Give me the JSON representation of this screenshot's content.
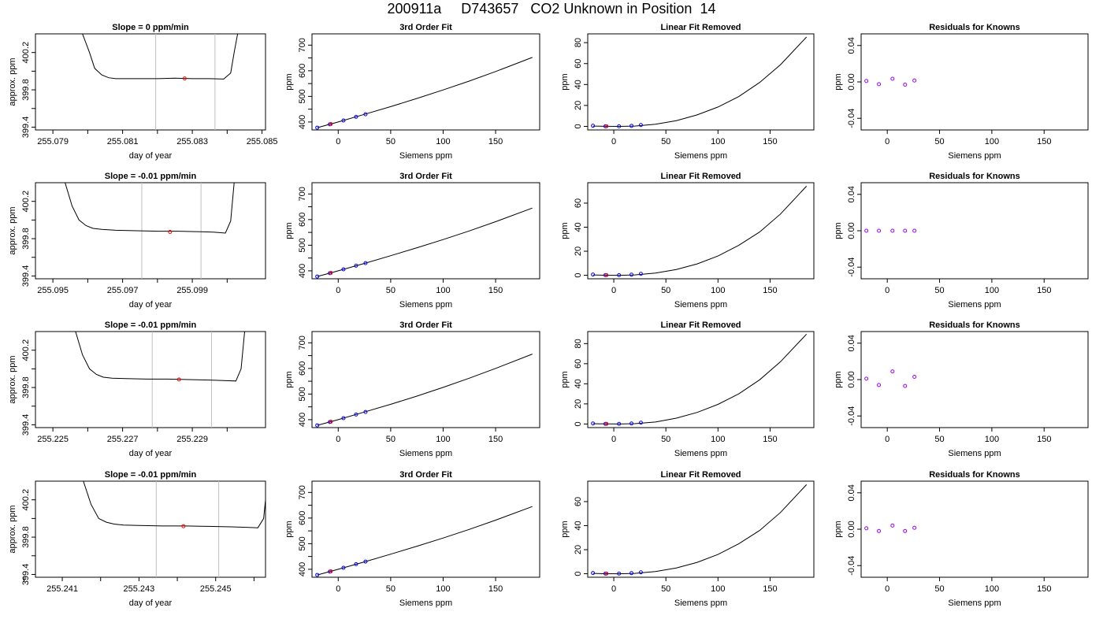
{
  "page": {
    "title": "200911a     D743657   CO2 Unknown in Position  14"
  },
  "chart_data": [
    {
      "panel": "time-series",
      "type": "line",
      "title": "Slope =  0  ppm/min",
      "xlabel": "day of year",
      "ylabel": "approx. ppm",
      "xlim": [
        255.0785,
        255.0851
      ],
      "ylim": [
        399.37,
        400.4
      ],
      "xticks": [
        "255.079",
        "255.081",
        "255.083",
        "255.085"
      ],
      "xtick_values": [
        255.079,
        255.081,
        255.083,
        255.085
      ],
      "xticks_minor": [
        255.08,
        255.082,
        255.084
      ],
      "yticks": [
        "399.4",
        "399.8",
        "400.2"
      ],
      "ytick_values": [
        399.4,
        399.8,
        400.2
      ],
      "yticks_minor": [
        399.6,
        400.0
      ],
      "vlines": [
        255.08195,
        255.08365
      ],
      "trace": {
        "x": [
          255.07985,
          255.08005,
          255.0802,
          255.0804,
          255.0806,
          255.0808,
          255.081,
          255.0814,
          255.082,
          255.0825,
          255.083,
          255.0835,
          255.0839,
          255.0841,
          255.0842,
          255.0843
        ],
        "y": [
          400.4,
          400.2,
          400.03,
          399.96,
          399.93,
          399.92,
          399.92,
          399.92,
          399.92,
          399.925,
          399.92,
          399.92,
          399.915,
          399.98,
          400.2,
          400.4
        ]
      },
      "point": {
        "x": 255.08278,
        "y": 399.922
      }
    },
    {
      "panel": "fit",
      "type": "line",
      "title": "3rd Order Fit",
      "xlabel": "Siemens ppm",
      "ylabel": "ppm",
      "xlim": [
        -25,
        192
      ],
      "ylim": [
        369,
        744
      ],
      "xticks": [
        "0",
        "50",
        "100",
        "150"
      ],
      "xtick_values": [
        0,
        50,
        100,
        150
      ],
      "yticks": [
        "400",
        "500",
        "600",
        "700"
      ],
      "ytick_values": [
        400,
        500,
        600,
        700
      ],
      "yticks_minor": [
        450,
        550,
        650
      ],
      "curve": {
        "x": [
          -20,
          0,
          25,
          50,
          75,
          100,
          125,
          150,
          185
        ],
        "y": [
          378,
          400,
          430,
          460,
          492,
          525,
          560,
          597,
          652
        ]
      },
      "knowns": {
        "x": [
          -20,
          -8,
          5,
          17,
          26
        ],
        "y": [
          378,
          391,
          406,
          420,
          430
        ]
      },
      "unknown": {
        "x": -7,
        "y": 392
      }
    },
    {
      "panel": "linear-removed",
      "type": "line",
      "title": "Linear Fit Removed",
      "xlabel": "Siemens ppm",
      "ylabel": "ppm",
      "xlim": [
        -25,
        192
      ],
      "ylim": [
        -3.4,
        88.4
      ],
      "xticks": [
        "0",
        "50",
        "100",
        "150"
      ],
      "xtick_values": [
        0,
        50,
        100,
        150
      ],
      "yticks": [
        "0",
        "20",
        "40",
        "60",
        "80"
      ],
      "ytick_values": [
        0,
        20,
        40,
        60,
        80
      ],
      "curve": {
        "x": [
          -20,
          -8,
          5,
          20,
          40,
          60,
          80,
          100,
          120,
          140,
          160,
          185
        ],
        "y": [
          0.3,
          0.05,
          0,
          0.3,
          2,
          5.5,
          11,
          18.5,
          28.5,
          42,
          59,
          85.4
        ]
      },
      "knowns": {
        "x": [
          -20,
          -8,
          5,
          17,
          26
        ],
        "y": [
          0.6,
          0.1,
          0.1,
          0.5,
          1.3
        ]
      },
      "unknown": {
        "x": -7,
        "y": 0.1
      }
    },
    {
      "panel": "residuals",
      "type": "scatter",
      "title": "Residuals for Knowns",
      "xlabel": "Siemens ppm",
      "ylabel": "ppm",
      "xlim": [
        -25,
        192
      ],
      "ylim": [
        -0.0528,
        0.0528
      ],
      "xticks": [
        "0",
        "50",
        "100",
        "150"
      ],
      "xtick_values": [
        0,
        50,
        100,
        150
      ],
      "yticks": [
        "-0.04",
        "0.00",
        "0.04"
      ],
      "ytick_values": [
        -0.04,
        0,
        0.04
      ],
      "points": {
        "x": [
          -20,
          -8,
          5,
          17,
          26
        ],
        "y": [
          0.001,
          -0.0025,
          0.0035,
          -0.003,
          0.0015
        ]
      }
    },
    {
      "panel": "time-series",
      "type": "line",
      "title": "Slope =  -0.01  ppm/min",
      "xlabel": "day of year",
      "ylabel": "approx. ppm",
      "xlim": [
        255.0945,
        255.1011
      ],
      "ylim": [
        399.37,
        400.4
      ],
      "xticks": [
        "255.095",
        "255.097",
        "255.099"
      ],
      "xtick_values": [
        255.095,
        255.097,
        255.099
      ],
      "xticks_minor": [
        255.096,
        255.098,
        255.1
      ],
      "yticks": [
        "399.4",
        "399.8",
        "400.2"
      ],
      "ytick_values": [
        399.4,
        399.8,
        400.2
      ],
      "yticks_minor": [
        399.6,
        400.0
      ],
      "vlines": [
        255.09755,
        255.09925
      ],
      "trace": {
        "x": [
          255.09535,
          255.09555,
          255.09575,
          255.09595,
          255.09615,
          255.0964,
          255.0968,
          255.0974,
          255.098,
          255.0986,
          255.0992,
          255.0996,
          255.09995,
          255.1001,
          255.1002
        ],
        "y": [
          400.4,
          400.15,
          400.0,
          399.94,
          399.91,
          399.9,
          399.89,
          399.885,
          399.88,
          399.88,
          399.875,
          399.87,
          399.86,
          399.99,
          400.4
        ]
      },
      "point": {
        "x": 255.09836,
        "y": 399.872
      }
    },
    {
      "panel": "fit",
      "type": "line",
      "title": "3rd Order Fit",
      "xlabel": "Siemens ppm",
      "ylabel": "ppm",
      "xlim": [
        -25,
        192
      ],
      "ylim": [
        369,
        744
      ],
      "xticks": [
        "0",
        "50",
        "100",
        "150"
      ],
      "xtick_values": [
        0,
        50,
        100,
        150
      ],
      "yticks": [
        "400",
        "500",
        "600",
        "700"
      ],
      "ytick_values": [
        400,
        500,
        600,
        700
      ],
      "yticks_minor": [
        450,
        550,
        650
      ],
      "curve": {
        "x": [
          -20,
          0,
          25,
          50,
          75,
          100,
          125,
          150,
          185
        ],
        "y": [
          378,
          400,
          429,
          459,
          490,
          522,
          556,
          592,
          645
        ]
      },
      "knowns": {
        "x": [
          -20,
          -8,
          5,
          17,
          26
        ],
        "y": [
          378,
          391,
          406,
          420,
          430
        ]
      },
      "unknown": {
        "x": -7,
        "y": 392
      }
    },
    {
      "panel": "linear-removed",
      "type": "line",
      "title": "Linear Fit Removed",
      "xlabel": "Siemens ppm",
      "ylabel": "ppm",
      "xlim": [
        -25,
        192
      ],
      "ylim": [
        -2.9,
        77.0
      ],
      "xticks": [
        "0",
        "50",
        "100",
        "150"
      ],
      "xtick_values": [
        0,
        50,
        100,
        150
      ],
      "yticks": [
        "0",
        "20",
        "40",
        "60"
      ],
      "ytick_values": [
        0,
        20,
        40,
        60
      ],
      "curve": {
        "x": [
          -20,
          -8,
          5,
          20,
          40,
          60,
          80,
          100,
          120,
          140,
          160,
          185
        ],
        "y": [
          0.3,
          0.05,
          0,
          0.3,
          1.8,
          4.8,
          9.5,
          16,
          25,
          36,
          51,
          74.1
        ]
      },
      "knowns": {
        "x": [
          -20,
          -8,
          5,
          17,
          26
        ],
        "y": [
          0.6,
          0.1,
          0.1,
          0.5,
          1.2
        ]
      },
      "unknown": {
        "x": -7,
        "y": 0.1
      }
    },
    {
      "panel": "residuals",
      "type": "scatter",
      "title": "Residuals for Knowns",
      "xlabel": "Siemens ppm",
      "ylabel": "ppm",
      "xlim": [
        -25,
        192
      ],
      "ylim": [
        -0.0528,
        0.0528
      ],
      "xticks": [
        "0",
        "50",
        "100",
        "150"
      ],
      "xtick_values": [
        0,
        50,
        100,
        150
      ],
      "yticks": [
        "-0.04",
        "0.00",
        "0.04"
      ],
      "ytick_values": [
        -0.04,
        0,
        0.04
      ],
      "points": {
        "x": [
          -20,
          -8,
          5,
          17,
          26
        ],
        "y": [
          0,
          0,
          0,
          0,
          0
        ]
      }
    },
    {
      "panel": "time-series",
      "type": "line",
      "title": "Slope =  -0.01  ppm/min",
      "xlabel": "day of year",
      "ylabel": "approx. ppm",
      "xlim": [
        255.2245,
        255.2311
      ],
      "ylim": [
        399.37,
        400.4
      ],
      "xticks": [
        "255.225",
        "255.227",
        "255.229"
      ],
      "xtick_values": [
        255.225,
        255.227,
        255.229
      ],
      "xticks_minor": [
        255.226,
        255.228,
        255.23
      ],
      "yticks": [
        "399.4",
        "399.8",
        "400.2"
      ],
      "ytick_values": [
        399.4,
        399.8,
        400.2
      ],
      "yticks_minor": [
        399.6,
        400.0
      ],
      "vlines": [
        255.22785,
        255.22955
      ],
      "trace": {
        "x": [
          255.22565,
          255.22585,
          255.22605,
          255.22625,
          255.22645,
          255.2267,
          255.2271,
          255.2277,
          255.2283,
          255.2289,
          255.2295,
          255.2299,
          255.23025,
          255.2304,
          255.2305
        ],
        "y": [
          400.4,
          400.15,
          400.0,
          399.94,
          399.91,
          399.9,
          399.895,
          399.89,
          399.89,
          399.885,
          399.88,
          399.875,
          399.87,
          400.0,
          400.4
        ]
      },
      "point": {
        "x": 255.22862,
        "y": 399.886
      }
    },
    {
      "panel": "fit",
      "type": "line",
      "title": "3rd Order Fit",
      "xlabel": "Siemens ppm",
      "ylabel": "ppm",
      "xlim": [
        -25,
        192
      ],
      "ylim": [
        369,
        744
      ],
      "xticks": [
        "0",
        "50",
        "100",
        "150"
      ],
      "xtick_values": [
        0,
        50,
        100,
        150
      ],
      "yticks": [
        "400",
        "500",
        "600",
        "700"
      ],
      "ytick_values": [
        400,
        500,
        600,
        700
      ],
      "yticks_minor": [
        450,
        550,
        650
      ],
      "curve": {
        "x": [
          -20,
          0,
          25,
          50,
          75,
          100,
          125,
          150,
          185
        ],
        "y": [
          378,
          400,
          430,
          460,
          492,
          526,
          562,
          600,
          656
        ]
      },
      "knowns": {
        "x": [
          -20,
          -8,
          5,
          17,
          26
        ],
        "y": [
          378,
          391,
          406,
          420,
          430
        ]
      },
      "unknown": {
        "x": -7,
        "y": 392
      }
    },
    {
      "panel": "linear-removed",
      "type": "line",
      "title": "Linear Fit Removed",
      "xlabel": "Siemens ppm",
      "ylabel": "ppm",
      "xlim": [
        -25,
        192
      ],
      "ylim": [
        -3.6,
        92.0
      ],
      "xticks": [
        "0",
        "50",
        "100",
        "150"
      ],
      "xtick_values": [
        0,
        50,
        100,
        150
      ],
      "yticks": [
        "0",
        "20",
        "40",
        "60",
        "80"
      ],
      "ytick_values": [
        0,
        20,
        40,
        60,
        80
      ],
      "curve": {
        "x": [
          -20,
          -8,
          5,
          20,
          40,
          60,
          80,
          100,
          120,
          140,
          160,
          185
        ],
        "y": [
          0.3,
          0.05,
          0,
          0.3,
          2,
          5.8,
          11.5,
          19.5,
          30,
          44,
          62,
          89.4
        ]
      },
      "knowns": {
        "x": [
          -20,
          -8,
          5,
          17,
          26
        ],
        "y": [
          0.5,
          0.1,
          0.1,
          0.5,
          1.3
        ]
      },
      "unknown": {
        "x": -7,
        "y": 0.1
      }
    },
    {
      "panel": "residuals",
      "type": "scatter",
      "title": "Residuals for Knowns",
      "xlabel": "Siemens ppm",
      "ylabel": "ppm",
      "xlim": [
        -25,
        192
      ],
      "ylim": [
        -0.0528,
        0.0528
      ],
      "xticks": [
        "0",
        "50",
        "100",
        "150"
      ],
      "xtick_values": [
        0,
        50,
        100,
        150
      ],
      "yticks": [
        "-0.04",
        "0.00",
        "0.04"
      ],
      "ytick_values": [
        -0.04,
        0,
        0.04
      ],
      "points": {
        "x": [
          -20,
          -8,
          5,
          17,
          26
        ],
        "y": [
          0.001,
          -0.006,
          0.009,
          -0.007,
          0.003
        ]
      }
    },
    {
      "panel": "time-series",
      "type": "line",
      "title": "Slope =  -0.01  ppm/min",
      "xlabel": "day of year",
      "ylabel": "approx. ppm",
      "xlim": [
        255.2403,
        255.2463
      ],
      "ylim": [
        399.37,
        400.4
      ],
      "xticks": [
        "255.241",
        "255.243",
        "255.245"
      ],
      "xtick_values": [
        255.241,
        255.243,
        255.245
      ],
      "xticks_minor": [
        255.24,
        255.242,
        255.244,
        255.246
      ],
      "yticks": [
        "399.4",
        "399.8",
        "400.2"
      ],
      "ytick_values": [
        399.4,
        399.8,
        400.2
      ],
      "yticks_minor": [
        399.6,
        400.0
      ],
      "vlines": [
        255.24345,
        255.24508
      ],
      "trace": {
        "x": [
          255.24155,
          255.24175,
          255.24195,
          255.24215,
          255.24235,
          255.2426,
          255.243,
          255.2436,
          255.2442,
          255.2448,
          255.2454,
          255.2458,
          255.2461,
          255.24625,
          255.24635
        ],
        "y": [
          400.4,
          400.15,
          400.0,
          399.96,
          399.94,
          399.93,
          399.925,
          399.92,
          399.92,
          399.915,
          399.91,
          399.905,
          399.9,
          400.0,
          400.4
        ]
      },
      "point": {
        "x": 255.24416,
        "y": 399.917
      }
    },
    {
      "panel": "fit",
      "type": "line",
      "title": "3rd Order Fit",
      "xlabel": "Siemens ppm",
      "ylabel": "ppm",
      "xlim": [
        -25,
        192
      ],
      "ylim": [
        369,
        744
      ],
      "xticks": [
        "0",
        "50",
        "100",
        "150"
      ],
      "xtick_values": [
        0,
        50,
        100,
        150
      ],
      "yticks": [
        "400",
        "500",
        "600",
        "700"
      ],
      "ytick_values": [
        400,
        500,
        600,
        700
      ],
      "yticks_minor": [
        450,
        550,
        650
      ],
      "curve": {
        "x": [
          -20,
          0,
          25,
          50,
          75,
          100,
          125,
          150,
          185
        ],
        "y": [
          378,
          400,
          429,
          459,
          490,
          522,
          556,
          592,
          645
        ]
      },
      "knowns": {
        "x": [
          -20,
          -8,
          5,
          17,
          26
        ],
        "y": [
          378,
          391,
          406,
          420,
          430
        ]
      },
      "unknown": {
        "x": -7,
        "y": 392
      }
    },
    {
      "panel": "linear-removed",
      "type": "line",
      "title": "Linear Fit Removed",
      "xlabel": "Siemens ppm",
      "ylabel": "ppm",
      "xlim": [
        -25,
        192
      ],
      "ylim": [
        -2.9,
        77.0
      ],
      "xticks": [
        "0",
        "50",
        "100",
        "150"
      ],
      "xtick_values": [
        0,
        50,
        100,
        150
      ],
      "yticks": [
        "0",
        "20",
        "40",
        "60"
      ],
      "ytick_values": [
        0,
        20,
        40,
        60
      ],
      "curve": {
        "x": [
          -20,
          -8,
          5,
          20,
          40,
          60,
          80,
          100,
          120,
          140,
          160,
          185
        ],
        "y": [
          0.3,
          0.05,
          0,
          0.3,
          1.8,
          4.8,
          9.5,
          16,
          25,
          36,
          51,
          74.1
        ]
      },
      "knowns": {
        "x": [
          -20,
          -8,
          5,
          17,
          26
        ],
        "y": [
          0.6,
          0.1,
          0.1,
          0.5,
          1.2
        ]
      },
      "unknown": {
        "x": -7,
        "y": 0.1
      }
    },
    {
      "panel": "residuals",
      "type": "scatter",
      "title": "Residuals for Knowns",
      "xlabel": "Siemens ppm",
      "ylabel": "ppm",
      "xlim": [
        -25,
        192
      ],
      "ylim": [
        -0.0528,
        0.0528
      ],
      "xticks": [
        "0",
        "50",
        "100",
        "150"
      ],
      "xtick_values": [
        0,
        50,
        100,
        150
      ],
      "yticks": [
        "-0.04",
        "0.00",
        "0.04"
      ],
      "ytick_values": [
        -0.04,
        0,
        0.04
      ],
      "points": {
        "x": [
          -20,
          -8,
          5,
          17,
          26
        ],
        "y": [
          0.001,
          -0.002,
          0.004,
          -0.002,
          0.0015
        ]
      }
    }
  ],
  "colors": {
    "axes": "#000000",
    "trace": "#000000",
    "vline": "#bfbfbf",
    "unknown": "#ff0000",
    "known_fit": "#0000ff",
    "residual": "#9900ff"
  }
}
